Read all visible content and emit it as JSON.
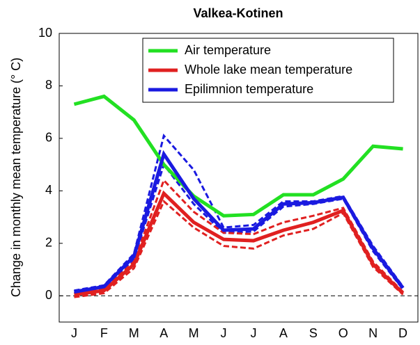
{
  "chart_data": {
    "type": "line",
    "title": "Valkea-Kotinen",
    "y_label": "Change in monthly mean temperature (° C)",
    "categories": [
      "J",
      "F",
      "M",
      "A",
      "M",
      "J",
      "J",
      "A",
      "S",
      "O",
      "N",
      "D"
    ],
    "ylim": [
      -1,
      10
    ],
    "yticks": [
      0,
      2,
      4,
      6,
      8,
      10
    ],
    "zero_line": true,
    "series": [
      {
        "name": "Air temperature",
        "color": "#22e022",
        "values": [
          7.3,
          7.6,
          6.7,
          5.0,
          3.8,
          3.05,
          3.1,
          3.85,
          3.85,
          4.45,
          5.7,
          5.6
        ]
      },
      {
        "name": "Whole lake mean temperature",
        "color": "#e02020",
        "values": [
          0.05,
          0.2,
          1.2,
          3.9,
          2.8,
          2.15,
          2.1,
          2.5,
          2.8,
          3.25,
          1.2,
          0.1
        ]
      },
      {
        "name": "Epilimnion temperature",
        "color": "#1a1ae0",
        "values": [
          0.15,
          0.35,
          1.5,
          5.4,
          3.7,
          2.5,
          2.55,
          3.5,
          3.55,
          3.75,
          1.8,
          0.3
        ]
      },
      {
        "color": "#1a1ae0",
        "dashed": true,
        "values": [
          0.2,
          0.4,
          1.6,
          6.1,
          4.8,
          2.6,
          2.7,
          3.6,
          3.6,
          3.8,
          1.9,
          0.35
        ]
      },
      {
        "color": "#1a1ae0",
        "dashed": true,
        "values": [
          0.1,
          0.3,
          1.4,
          5.0,
          3.5,
          2.4,
          2.45,
          3.4,
          3.5,
          3.7,
          1.7,
          0.25
        ]
      },
      {
        "color": "#e02020",
        "dashed": true,
        "values": [
          0.1,
          0.25,
          1.3,
          4.4,
          3.2,
          2.4,
          2.35,
          2.8,
          3.05,
          3.35,
          1.3,
          0.15
        ]
      },
      {
        "color": "#e02020",
        "dashed": true,
        "values": [
          -0.05,
          0.1,
          1.05,
          3.6,
          2.6,
          1.9,
          1.8,
          2.3,
          2.55,
          3.15,
          1.1,
          0.05
        ]
      }
    ]
  }
}
